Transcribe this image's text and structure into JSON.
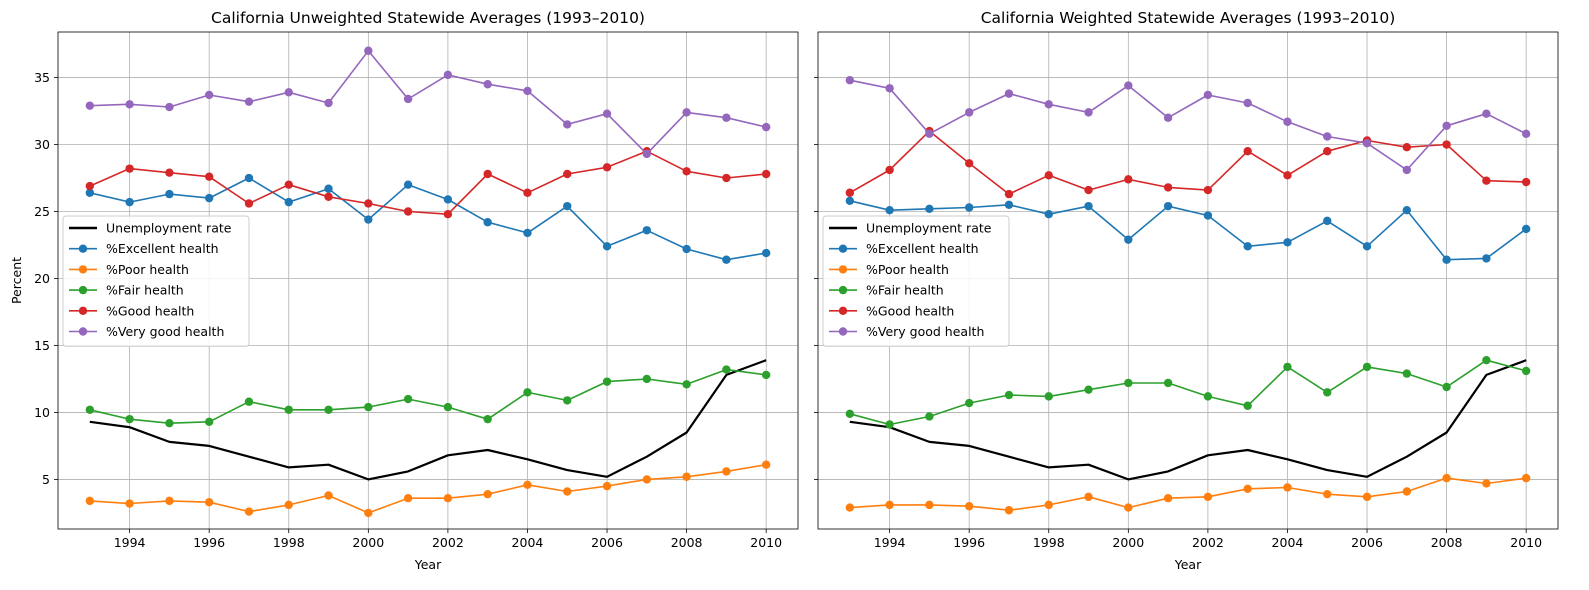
{
  "chart_data": [
    {
      "type": "line",
      "title": "California Unweighted Statewide Averages (1993–2010)",
      "xlabel": "Year",
      "ylabel": "Percent",
      "x": [
        1993,
        1994,
        1995,
        1996,
        1997,
        1998,
        1999,
        2000,
        2001,
        2002,
        2003,
        2004,
        2005,
        2006,
        2007,
        2008,
        2009,
        2010
      ],
      "xlim": [
        1992.2,
        2010.8
      ],
      "ylim": [
        1.3,
        38.4
      ],
      "xticks": [
        "1994",
        "1996",
        "1998",
        "2000",
        "2002",
        "2004",
        "2006",
        "2008",
        "2010"
      ],
      "yticks": [
        "5",
        "10",
        "15",
        "20",
        "25",
        "30",
        "35"
      ],
      "grid": true,
      "legend_position": "center-left",
      "series": [
        {
          "name": "Unemployment rate",
          "color": "#000000",
          "marker": "none",
          "values": [
            9.3,
            8.9,
            7.8,
            7.5,
            6.7,
            5.9,
            6.1,
            5.0,
            5.6,
            6.8,
            7.2,
            6.5,
            5.7,
            5.2,
            6.7,
            8.5,
            12.8,
            13.9
          ]
        },
        {
          "name": "%Excellent health",
          "color": "#1f77b4",
          "marker": "circle",
          "values": [
            26.4,
            25.7,
            26.3,
            26.0,
            27.5,
            25.7,
            26.7,
            24.4,
            27.0,
            25.9,
            24.2,
            23.4,
            25.4,
            22.4,
            23.6,
            22.2,
            21.4,
            21.9
          ]
        },
        {
          "name": "%Poor health",
          "color": "#ff7f0e",
          "marker": "circle",
          "values": [
            3.4,
            3.2,
            3.4,
            3.3,
            2.6,
            3.1,
            3.8,
            2.5,
            3.6,
            3.6,
            3.9,
            4.6,
            4.1,
            4.5,
            5.0,
            5.2,
            5.6,
            6.1
          ]
        },
        {
          "name": "%Fair health",
          "color": "#2ca02c",
          "marker": "circle",
          "values": [
            10.2,
            9.5,
            9.2,
            9.3,
            10.8,
            10.2,
            10.2,
            10.4,
            11.0,
            10.4,
            9.5,
            11.5,
            10.9,
            12.3,
            12.5,
            12.1,
            13.2,
            12.8
          ]
        },
        {
          "name": "%Good health",
          "color": "#d62728",
          "marker": "circle",
          "values": [
            26.9,
            28.2,
            27.9,
            27.6,
            25.6,
            27.0,
            26.1,
            25.6,
            25.0,
            24.8,
            27.8,
            26.4,
            27.8,
            28.3,
            29.5,
            28.0,
            27.5,
            27.8
          ]
        },
        {
          "name": "%Very good health",
          "color": "#9467bd",
          "marker": "circle",
          "values": [
            32.9,
            33.0,
            32.8,
            33.7,
            33.2,
            33.9,
            33.1,
            37.0,
            33.4,
            35.2,
            34.5,
            34.0,
            31.5,
            32.3,
            29.3,
            32.4,
            32.0,
            31.3
          ]
        }
      ]
    },
    {
      "type": "line",
      "title": "California Weighted Statewide Averages (1993–2010)",
      "xlabel": "Year",
      "ylabel": "",
      "x": [
        1993,
        1994,
        1995,
        1996,
        1997,
        1998,
        1999,
        2000,
        2001,
        2002,
        2003,
        2004,
        2005,
        2006,
        2007,
        2008,
        2009,
        2010
      ],
      "xlim": [
        1992.2,
        2010.8
      ],
      "ylim": [
        1.3,
        38.4
      ],
      "xticks": [
        "1994",
        "1996",
        "1998",
        "2000",
        "2002",
        "2004",
        "2006",
        "2008",
        "2010"
      ],
      "yticks": [],
      "grid": true,
      "legend_position": "center-left",
      "series": [
        {
          "name": "Unemployment rate",
          "color": "#000000",
          "marker": "none",
          "values": [
            9.3,
            8.9,
            7.8,
            7.5,
            6.7,
            5.9,
            6.1,
            5.0,
            5.6,
            6.8,
            7.2,
            6.5,
            5.7,
            5.2,
            6.7,
            8.5,
            12.8,
            13.9
          ]
        },
        {
          "name": "%Excellent health",
          "color": "#1f77b4",
          "marker": "circle",
          "values": [
            25.8,
            25.1,
            25.2,
            25.3,
            25.5,
            24.8,
            25.4,
            22.9,
            25.4,
            24.7,
            22.4,
            22.7,
            24.3,
            22.4,
            25.1,
            21.4,
            21.5,
            23.7
          ]
        },
        {
          "name": "%Poor health",
          "color": "#ff7f0e",
          "marker": "circle",
          "values": [
            2.9,
            3.1,
            3.1,
            3.0,
            2.7,
            3.1,
            3.7,
            2.9,
            3.6,
            3.7,
            4.3,
            4.4,
            3.9,
            3.7,
            4.1,
            5.1,
            4.7,
            5.1
          ]
        },
        {
          "name": "%Fair health",
          "color": "#2ca02c",
          "marker": "circle",
          "values": [
            9.9,
            9.1,
            9.7,
            10.7,
            11.3,
            11.2,
            11.7,
            12.2,
            12.2,
            11.2,
            10.5,
            13.4,
            11.5,
            13.4,
            12.9,
            11.9,
            13.9,
            13.1
          ]
        },
        {
          "name": "%Good health",
          "color": "#d62728",
          "marker": "circle",
          "values": [
            26.4,
            28.1,
            31.0,
            28.6,
            26.3,
            27.7,
            26.6,
            27.4,
            26.8,
            26.6,
            29.5,
            27.7,
            29.5,
            30.3,
            29.8,
            30.0,
            27.3,
            27.2
          ]
        },
        {
          "name": "%Very good health",
          "color": "#9467bd",
          "marker": "circle",
          "values": [
            34.8,
            34.2,
            30.8,
            32.4,
            33.8,
            33.0,
            32.4,
            34.4,
            32.0,
            33.7,
            33.1,
            31.7,
            30.6,
            30.1,
            28.1,
            31.4,
            32.3,
            30.8
          ]
        }
      ]
    }
  ]
}
